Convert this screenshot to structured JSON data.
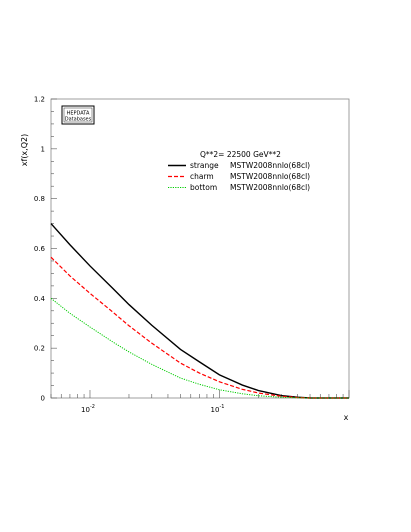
{
  "chart_data": {
    "type": "line",
    "xlabel": "x",
    "ylabel": "xf(x,Q2)",
    "xscale": "log",
    "xlim": [
      0.005,
      1.0
    ],
    "ylim": [
      0,
      1.2
    ],
    "y_ticks": [
      0,
      0.2,
      0.4,
      0.6,
      0.8,
      1,
      1.2
    ],
    "y_tick_labels": [
      "0",
      "0.2",
      "0.4",
      "0.6",
      "0.8",
      "1",
      "1.2"
    ],
    "x_ticks": [
      {
        "value": 0.01,
        "base": "10",
        "exp": "-2"
      },
      {
        "value": 0.1,
        "base": "10",
        "exp": "-1"
      }
    ],
    "logo": {
      "line1": "HEPDATA",
      "line2": "Databases"
    },
    "legend_header": "Q**2=   22500   GeV**2",
    "legend_position": "top-right",
    "grid": false,
    "series": [
      {
        "name": "strange",
        "set": "MSTW2008nnlo(68cl)",
        "color": "#000000",
        "style": "solid",
        "x": [
          0.005,
          0.007,
          0.01,
          0.015,
          0.02,
          0.03,
          0.05,
          0.07,
          0.1,
          0.15,
          0.2,
          0.3,
          0.4,
          0.5,
          0.7,
          1.0
        ],
        "y": [
          0.7,
          0.615,
          0.53,
          0.44,
          0.375,
          0.292,
          0.195,
          0.145,
          0.093,
          0.052,
          0.03,
          0.01,
          0.003,
          0.0,
          0.0,
          0.0
        ]
      },
      {
        "name": "charm",
        "set": "MSTW2008nnlo(68cl)",
        "color": "#ff0000",
        "style": "dashed",
        "x": [
          0.005,
          0.007,
          0.01,
          0.015,
          0.02,
          0.03,
          0.05,
          0.07,
          0.1,
          0.15,
          0.2,
          0.3,
          0.4,
          0.5,
          0.7,
          1.0
        ],
        "y": [
          0.565,
          0.49,
          0.42,
          0.345,
          0.29,
          0.22,
          0.14,
          0.1,
          0.065,
          0.035,
          0.02,
          0.007,
          0.002,
          0.0,
          0.0,
          0.0
        ]
      },
      {
        "name": "bottom",
        "set": "MSTW2008nnlo(68cl)",
        "color": "#00cc00",
        "style": "dotted",
        "x": [
          0.005,
          0.007,
          0.01,
          0.015,
          0.02,
          0.03,
          0.05,
          0.07,
          0.1,
          0.15,
          0.2,
          0.3,
          0.4,
          0.5,
          0.7,
          1.0
        ],
        "y": [
          0.4,
          0.34,
          0.285,
          0.225,
          0.185,
          0.135,
          0.08,
          0.055,
          0.033,
          0.017,
          0.009,
          0.003,
          0.001,
          0.0,
          0.0,
          0.0
        ]
      }
    ]
  }
}
